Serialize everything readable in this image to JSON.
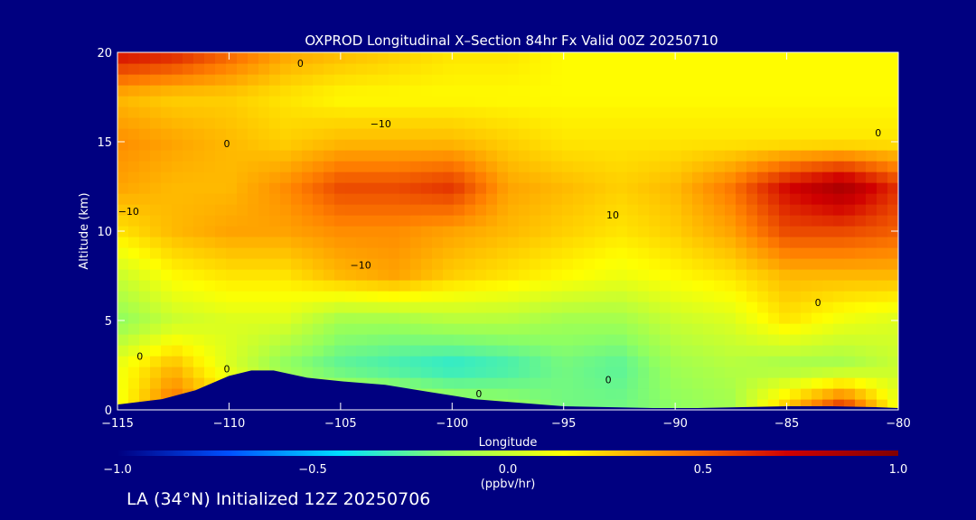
{
  "chart_data": {
    "type": "heatmap",
    "title": "OXPROD Longitudinal X–Section 84hr  Fx Valid 00Z 20250710",
    "xlabel": "Longitude",
    "ylabel": "Altitude (km)",
    "xlim": [
      -115,
      -80
    ],
    "ylim": [
      0,
      20
    ],
    "x_ticks": [
      -115,
      -110,
      -105,
      -100,
      -95,
      -90,
      -85,
      -80
    ],
    "x_tick_labels": [
      "−115",
      "−110",
      "−105",
      "−100",
      "−95",
      "−90",
      "−85",
      "−80"
    ],
    "y_ticks": [
      0,
      5,
      10,
      15,
      20
    ],
    "y_tick_labels": [
      "0",
      "5",
      "10",
      "15",
      "20"
    ],
    "colorbar": {
      "min": -1.0,
      "max": 1.0,
      "ticks": [
        -1.0,
        -0.5,
        0.0,
        0.5,
        1.0
      ],
      "tick_labels": [
        "−1.0",
        "−0.5",
        "0.0",
        "0.5",
        "1.0"
      ],
      "units": "(ppbv/hr)",
      "colors": [
        "#000080",
        "#0050ff",
        "#00e0ff",
        "#90ff60",
        "#ffff00",
        "#ff8000",
        "#d00000",
        "#800000"
      ]
    },
    "contour_labels": [
      {
        "text": "0",
        "lon": -106.8,
        "alt": 19.2
      },
      {
        "text": "0",
        "lon": -110.1,
        "alt": 14.7
      },
      {
        "text": "−10",
        "lon": -103.2,
        "alt": 15.8
      },
      {
        "text": "0",
        "lon": -80.9,
        "alt": 15.3
      },
      {
        "text": "−10",
        "lon": -114.5,
        "alt": 10.9
      },
      {
        "text": "10",
        "lon": -92.8,
        "alt": 10.7
      },
      {
        "text": "−10",
        "lon": -104.1,
        "alt": 7.9
      },
      {
        "text": "0",
        "lon": -83.6,
        "alt": 5.8
      },
      {
        "text": "0",
        "lon": -114.0,
        "alt": 2.8
      },
      {
        "text": "0",
        "lon": -110.1,
        "alt": 2.1
      },
      {
        "text": "0",
        "lon": -93.0,
        "alt": 1.5
      },
      {
        "text": "0",
        "lon": -98.8,
        "alt": 0.7
      }
    ],
    "field": {
      "lon_step": 2.5,
      "alt_step": 2.5,
      "lons": [
        -115,
        -112.5,
        -110,
        -107.5,
        -105,
        -102.5,
        -100,
        -97.5,
        -95,
        -92.5,
        -90,
        -87.5,
        -85,
        -82.5,
        -80
      ],
      "alts": [
        0,
        2.5,
        5,
        7.5,
        10,
        12.5,
        15,
        17.5,
        20
      ],
      "values": [
        [
          0.1,
          0.5,
          0.25,
          0.1,
          0.05,
          0.0,
          -0.05,
          -0.1,
          -0.2,
          -0.2,
          -0.15,
          -0.1,
          0.3,
          0.65,
          0.1
        ],
        [
          0.1,
          0.3,
          0.05,
          -0.15,
          -0.25,
          -0.3,
          -0.35,
          -0.3,
          -0.2,
          -0.25,
          -0.1,
          -0.05,
          -0.1,
          -0.1,
          0.0
        ],
        [
          -0.15,
          0.0,
          0.05,
          0.05,
          -0.1,
          -0.1,
          -0.05,
          -0.05,
          -0.1,
          -0.1,
          0.0,
          0.05,
          0.2,
          0.1,
          0.05
        ],
        [
          0.0,
          0.15,
          0.2,
          0.2,
          0.3,
          0.35,
          0.25,
          0.2,
          0.15,
          0.1,
          0.15,
          0.2,
          0.3,
          0.3,
          0.3
        ],
        [
          0.2,
          0.3,
          0.35,
          0.35,
          0.4,
          0.4,
          0.35,
          0.3,
          0.25,
          0.2,
          0.25,
          0.35,
          0.55,
          0.55,
          0.5
        ],
        [
          0.35,
          0.3,
          0.3,
          0.4,
          0.55,
          0.55,
          0.6,
          0.35,
          0.3,
          0.25,
          0.3,
          0.45,
          0.7,
          0.85,
          0.6
        ],
        [
          0.4,
          0.35,
          0.3,
          0.25,
          0.3,
          0.3,
          0.3,
          0.25,
          0.2,
          0.2,
          0.2,
          0.2,
          0.2,
          0.2,
          0.2
        ],
        [
          0.3,
          0.25,
          0.25,
          0.2,
          0.15,
          0.15,
          0.15,
          0.15,
          0.15,
          0.15,
          0.15,
          0.15,
          0.15,
          0.15,
          0.15
        ],
        [
          0.7,
          0.65,
          0.5,
          0.35,
          0.3,
          0.25,
          0.2,
          0.2,
          0.15,
          0.15,
          0.15,
          0.15,
          0.15,
          0.15,
          0.15
        ]
      ]
    },
    "terrain_profile": {
      "lons": [
        -115,
        -113,
        -111.5,
        -110,
        -109,
        -108,
        -106.5,
        -105,
        -103,
        -101,
        -99,
        -97,
        -95,
        -93,
        -91,
        -89,
        -87,
        -85,
        -83,
        -81,
        -80
      ],
      "alts": [
        0.3,
        0.6,
        1.1,
        1.9,
        2.2,
        2.2,
        1.8,
        1.6,
        1.4,
        1.0,
        0.6,
        0.4,
        0.2,
        0.15,
        0.1,
        0.1,
        0.15,
        0.2,
        0.2,
        0.15,
        0.1
      ]
    }
  },
  "footer": {
    "caption": "LA (34°N) Initialized 12Z 20250706"
  }
}
